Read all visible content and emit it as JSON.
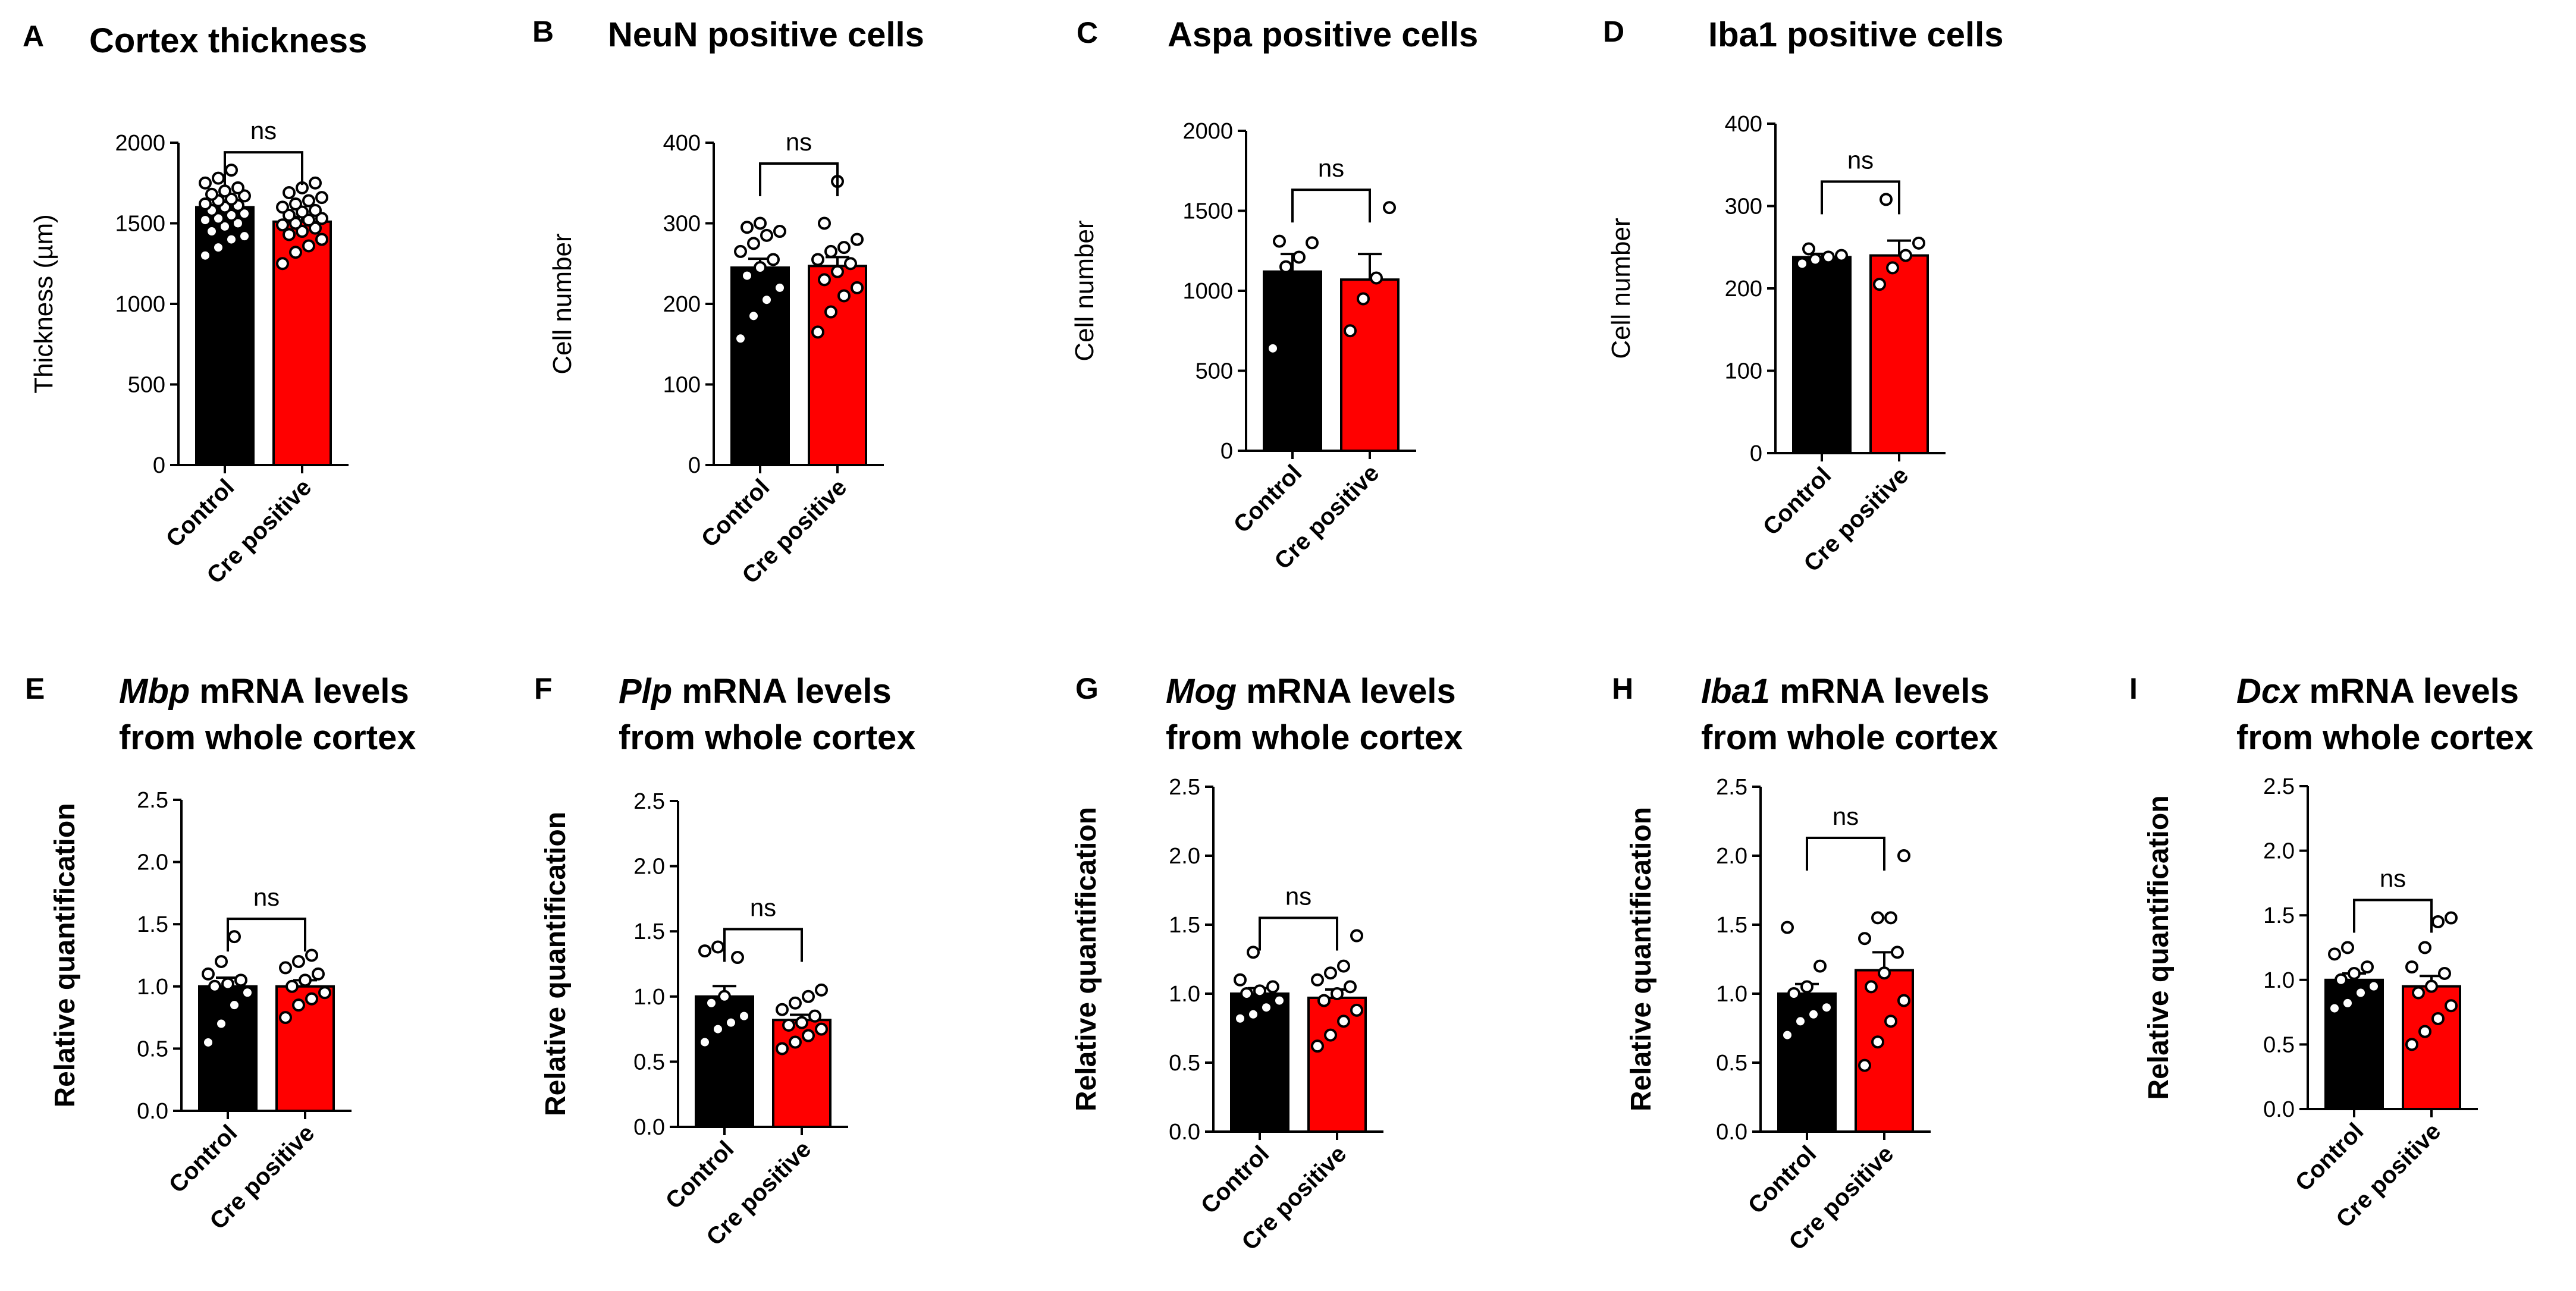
{
  "chart_data": [
    {
      "panel": "A",
      "type": "bar",
      "title": "Cortex thickness",
      "ylabel": "Thickness (µm)",
      "categories": [
        "Control",
        "Cre positive"
      ],
      "ylim": [
        0,
        2000
      ],
      "yticks": [
        0,
        500,
        1000,
        1500,
        2000
      ],
      "series": [
        {
          "name": "Control",
          "color": "#000000",
          "mean": 1600,
          "sem": 30,
          "points": [
            1300,
            1350,
            1400,
            1420,
            1450,
            1480,
            1500,
            1520,
            1530,
            1550,
            1560,
            1580,
            1600,
            1610,
            1620,
            1640,
            1650,
            1670,
            1680,
            1700,
            1720,
            1750,
            1780,
            1830
          ]
        },
        {
          "name": "Cre positive",
          "color": "#ff0000",
          "mean": 1510,
          "sem": 30,
          "points": [
            1250,
            1320,
            1360,
            1400,
            1430,
            1450,
            1470,
            1490,
            1500,
            1520,
            1530,
            1550,
            1570,
            1580,
            1600,
            1620,
            1640,
            1660,
            1690,
            1720,
            1750
          ]
        }
      ],
      "significance": "ns"
    },
    {
      "panel": "B",
      "type": "bar",
      "title": "NeuN positive cells",
      "ylabel": "Cell number",
      "categories": [
        "Control",
        "Cre positive"
      ],
      "ylim": [
        0,
        400
      ],
      "yticks": [
        0,
        100,
        200,
        300,
        400
      ],
      "series": [
        {
          "name": "Control",
          "color": "#000000",
          "mean": 245,
          "sem": 11,
          "points": [
            157,
            185,
            205,
            220,
            235,
            245,
            255,
            265,
            275,
            285,
            290,
            295,
            300
          ]
        },
        {
          "name": "Cre positive",
          "color": "#ff0000",
          "mean": 247,
          "sem": 11,
          "points": [
            165,
            190,
            210,
            220,
            230,
            240,
            250,
            255,
            265,
            270,
            280,
            300,
            352
          ]
        }
      ],
      "significance": "ns"
    },
    {
      "panel": "C",
      "type": "bar",
      "title": "Aspa positive cells",
      "ylabel": "Cell number",
      "categories": [
        "Control",
        "Cre positive"
      ],
      "ylim": [
        0,
        2000
      ],
      "yticks": [
        0,
        500,
        1000,
        1500,
        2000
      ],
      "series": [
        {
          "name": "Control",
          "color": "#000000",
          "mean": 1120,
          "sem": 110,
          "points": [
            640,
            1150,
            1210,
            1300,
            1310
          ]
        },
        {
          "name": "Cre positive",
          "color": "#ff0000",
          "mean": 1070,
          "sem": 160,
          "points": [
            750,
            950,
            1080,
            1520
          ]
        }
      ],
      "significance": "ns"
    },
    {
      "panel": "D",
      "type": "bar",
      "title": "Iba1 positive cells",
      "ylabel": "Cell number",
      "categories": [
        "Control",
        "Cre positive"
      ],
      "ylim": [
        0,
        400
      ],
      "yticks": [
        0,
        100,
        200,
        300,
        400
      ],
      "series": [
        {
          "name": "Control",
          "color": "#000000",
          "mean": 238,
          "sem": 4,
          "points": [
            230,
            235,
            238,
            240,
            248
          ]
        },
        {
          "name": "Cre positive",
          "color": "#ff0000",
          "mean": 240,
          "sem": 18,
          "points": [
            205,
            225,
            240,
            255,
            308
          ]
        }
      ],
      "significance": "ns"
    },
    {
      "panel": "E",
      "type": "bar",
      "title_gene": "Mbp",
      "title_rest": " mRNA levels",
      "title_line2": "from whole cortex",
      "ylabel": "Relative quantification",
      "categories": [
        "Control",
        "Cre positive"
      ],
      "ylim": [
        0,
        2.5
      ],
      "yticks": [
        "0.0",
        "0.5",
        "1.0",
        "1.5",
        "2.0",
        "2.5"
      ],
      "series": [
        {
          "name": "Control",
          "color": "#000000",
          "mean": 1.0,
          "sem": 0.07,
          "points": [
            0.55,
            0.7,
            0.85,
            0.95,
            1.0,
            1.02,
            1.05,
            1.1,
            1.2,
            1.4
          ]
        },
        {
          "name": "Cre positive",
          "color": "#ff0000",
          "mean": 1.0,
          "sem": 0.05,
          "points": [
            0.75,
            0.85,
            0.9,
            0.95,
            1.0,
            1.05,
            1.1,
            1.15,
            1.2,
            1.25
          ]
        }
      ],
      "significance": "ns"
    },
    {
      "panel": "F",
      "type": "bar",
      "title_gene": "Plp",
      "title_rest": " mRNA levels",
      "title_line2": "from whole cortex",
      "ylabel": "Relative quantification",
      "categories": [
        "Control",
        "Cre positive"
      ],
      "ylim": [
        0,
        2.5
      ],
      "yticks": [
        "0.0",
        "0.5",
        "1.0",
        "1.5",
        "2.0",
        "2.5"
      ],
      "series": [
        {
          "name": "Control",
          "color": "#000000",
          "mean": 1.0,
          "sem": 0.08,
          "points": [
            0.65,
            0.75,
            0.8,
            0.85,
            0.95,
            1.0,
            1.3,
            1.35,
            1.38
          ]
        },
        {
          "name": "Cre positive",
          "color": "#ff0000",
          "mean": 0.82,
          "sem": 0.04,
          "points": [
            0.6,
            0.65,
            0.7,
            0.75,
            0.78,
            0.8,
            0.85,
            0.9,
            0.95,
            1.0,
            1.05
          ]
        }
      ],
      "significance": "ns"
    },
    {
      "panel": "G",
      "type": "bar",
      "title_gene": "Mog",
      "title_rest": " mRNA levels",
      "title_line2": "from whole cortex",
      "ylabel": "Relative quantification",
      "categories": [
        "Control",
        "Cre positive"
      ],
      "ylim": [
        0,
        2.5
      ],
      "yticks": [
        "0.0",
        "0.5",
        "1.0",
        "1.5",
        "2.0",
        "2.5"
      ],
      "series": [
        {
          "name": "Control",
          "color": "#000000",
          "mean": 1.0,
          "sem": 0.04,
          "points": [
            0.82,
            0.85,
            0.9,
            0.95,
            1.0,
            1.02,
            1.05,
            1.1,
            1.3
          ]
        },
        {
          "name": "Cre positive",
          "color": "#ff0000",
          "mean": 0.97,
          "sem": 0.06,
          "points": [
            0.62,
            0.7,
            0.8,
            0.88,
            0.95,
            1.0,
            1.05,
            1.1,
            1.15,
            1.2,
            1.42
          ]
        }
      ],
      "significance": "ns"
    },
    {
      "panel": "H",
      "type": "bar",
      "title_gene": "Iba1",
      "title_rest": " mRNA levels",
      "title_line2": "from whole cortex",
      "ylabel": "Relative quantification",
      "categories": [
        "Control",
        "Cre positive"
      ],
      "ylim": [
        0,
        2.5
      ],
      "yticks": [
        "0.0",
        "0.5",
        "1.0",
        "1.5",
        "2.0",
        "2.5"
      ],
      "series": [
        {
          "name": "Control",
          "color": "#000000",
          "mean": 1.0,
          "sem": 0.07,
          "points": [
            0.7,
            0.8,
            0.85,
            0.9,
            1.0,
            1.05,
            1.2,
            1.48
          ]
        },
        {
          "name": "Cre positive",
          "color": "#ff0000",
          "mean": 1.17,
          "sem": 0.13,
          "points": [
            0.48,
            0.65,
            0.8,
            0.95,
            1.05,
            1.15,
            1.3,
            1.4,
            1.55,
            1.55,
            2.0
          ]
        }
      ],
      "significance": "ns"
    },
    {
      "panel": "I",
      "type": "bar",
      "title_gene": "Dcx",
      "title_rest": " mRNA levels",
      "title_line2": "from whole cortex",
      "ylabel": "Relative quantification",
      "categories": [
        "Control",
        "Cre positive"
      ],
      "ylim": [
        0,
        2.5
      ],
      "yticks": [
        "0.0",
        "0.5",
        "1.0",
        "1.5",
        "2.0",
        "2.5"
      ],
      "series": [
        {
          "name": "Control",
          "color": "#000000",
          "mean": 1.0,
          "sem": 0.05,
          "points": [
            0.78,
            0.82,
            0.9,
            0.95,
            1.0,
            1.05,
            1.1,
            1.2,
            1.25
          ]
        },
        {
          "name": "Cre positive",
          "color": "#ff0000",
          "mean": 0.95,
          "sem": 0.08,
          "points": [
            0.5,
            0.6,
            0.7,
            0.8,
            0.9,
            0.95,
            1.05,
            1.1,
            1.25,
            1.45,
            1.48
          ]
        }
      ],
      "significance": "ns"
    }
  ]
}
